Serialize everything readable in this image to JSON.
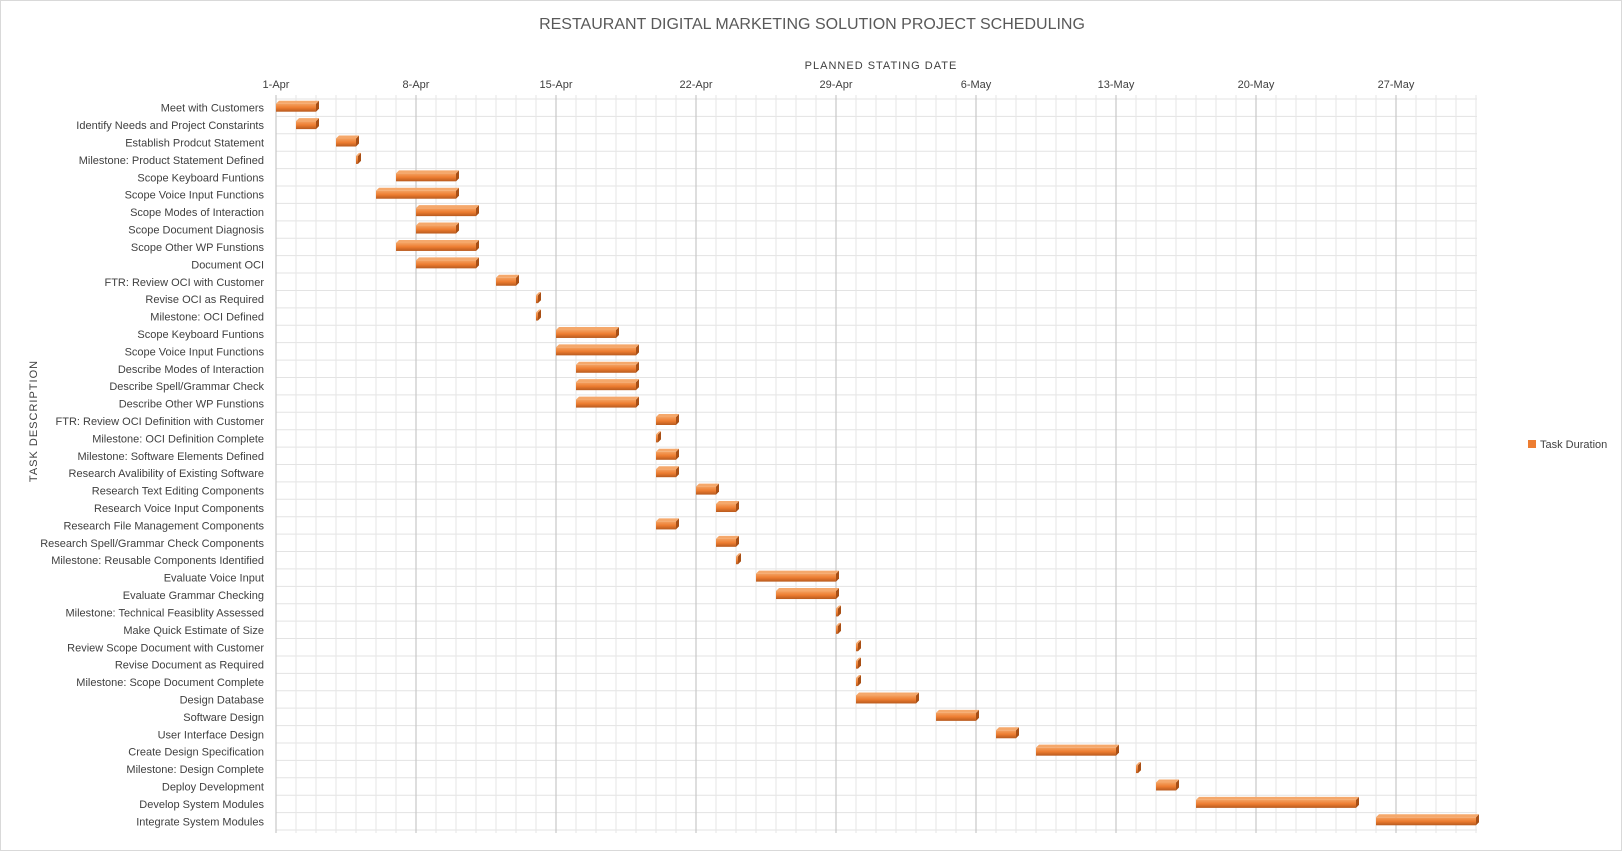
{
  "chart_data": {
    "type": "bar",
    "subtype": "gantt",
    "title": "RESTAURANT DIGITAL MARKETING SOLUTION PROJECT SCHEDULING",
    "xlabel": "PLANNED  STATING  DATE",
    "ylabel": "TASK DESCRIPTION",
    "x_axis_position": "top",
    "x_ticks": [
      "1-Apr",
      "8-Apr",
      "15-Apr",
      "22-Apr",
      "29-Apr",
      "6-May",
      "13-May",
      "20-May",
      "27-May"
    ],
    "x_range_days": [
      0,
      60
    ],
    "minor_grid_step_days": 1,
    "grid": true,
    "legend": {
      "position": "right",
      "entries": [
        "Task Duration"
      ]
    },
    "series": [
      {
        "name": "Task Duration",
        "color": "#ed7d31"
      }
    ],
    "tasks": [
      {
        "name": "Meet with Customers",
        "start": "1-Apr",
        "duration": 2
      },
      {
        "name": "Identify Needs and Project Constarints",
        "start": "2-Apr",
        "duration": 1
      },
      {
        "name": "Establish Prodcut Statement",
        "start": "4-Apr",
        "duration": 1
      },
      {
        "name": "Milestone: Product Statement Defined",
        "start": "5-Apr",
        "duration": 0
      },
      {
        "name": "Scope Keyboard Funtions",
        "start": "7-Apr",
        "duration": 3
      },
      {
        "name": "Scope Voice Input Functions",
        "start": "6-Apr",
        "duration": 4
      },
      {
        "name": "Scope Modes of Interaction",
        "start": "8-Apr",
        "duration": 3
      },
      {
        "name": "Scope Document Diagnosis",
        "start": "8-Apr",
        "duration": 2
      },
      {
        "name": "Scope Other WP Funstions",
        "start": "7-Apr",
        "duration": 4
      },
      {
        "name": "Document OCI",
        "start": "8-Apr",
        "duration": 3
      },
      {
        "name": "FTR: Review OCI with Customer",
        "start": "12-Apr",
        "duration": 1
      },
      {
        "name": "Revise OCI as Required",
        "start": "14-Apr",
        "duration": 0
      },
      {
        "name": "Milestone: OCI Defined",
        "start": "14-Apr",
        "duration": 0
      },
      {
        "name": "Scope Keyboard Funtions",
        "start": "15-Apr",
        "duration": 3
      },
      {
        "name": "Scope Voice Input Functions",
        "start": "15-Apr",
        "duration": 4
      },
      {
        "name": "Describe Modes of Interaction",
        "start": "16-Apr",
        "duration": 3
      },
      {
        "name": "Describe Spell/Grammar Check",
        "start": "16-Apr",
        "duration": 3
      },
      {
        "name": "Describe Other WP Funstions",
        "start": "16-Apr",
        "duration": 3
      },
      {
        "name": "FTR: Review OCI Definition with Customer",
        "start": "20-Apr",
        "duration": 1
      },
      {
        "name": "Milestone: OCI Definition Complete",
        "start": "20-Apr",
        "duration": 0
      },
      {
        "name": "Milestone: Software Elements Defined",
        "start": "20-Apr",
        "duration": 1
      },
      {
        "name": "Research Avalibility of Existing Software",
        "start": "20-Apr",
        "duration": 1
      },
      {
        "name": "Research Text Editing Components",
        "start": "22-Apr",
        "duration": 1
      },
      {
        "name": "Research Voice Input Components",
        "start": "23-Apr",
        "duration": 1
      },
      {
        "name": "Research File Management Components",
        "start": "20-Apr",
        "duration": 1
      },
      {
        "name": "Research Spell/Grammar Check Components",
        "start": "23-Apr",
        "duration": 1
      },
      {
        "name": "Milestone:  Reusable Components Identified",
        "start": "24-Apr",
        "duration": 0
      },
      {
        "name": "Evaluate Voice Input",
        "start": "25-Apr",
        "duration": 4
      },
      {
        "name": "Evaluate Grammar Checking",
        "start": "26-Apr",
        "duration": 3
      },
      {
        "name": "Milestone:  Technical Feasiblity Assessed",
        "start": "29-Apr",
        "duration": 0
      },
      {
        "name": "Make Quick Estimate of Size",
        "start": "29-Apr",
        "duration": 0
      },
      {
        "name": "Review Scope Document with Customer",
        "start": "30-Apr",
        "duration": 0
      },
      {
        "name": "Revise Document as Required",
        "start": "30-Apr",
        "duration": 0
      },
      {
        "name": "Milestone: Scope Document Complete",
        "start": "30-Apr",
        "duration": 0
      },
      {
        "name": "Design Database",
        "start": "30-Apr",
        "duration": 3
      },
      {
        "name": "Software Design",
        "start": "4-May",
        "duration": 2
      },
      {
        "name": "User Interface Design",
        "start": "7-May",
        "duration": 1
      },
      {
        "name": "Create Design Specification",
        "start": "9-May",
        "duration": 4
      },
      {
        "name": "Milestone: Design Complete",
        "start": "14-May",
        "duration": 0
      },
      {
        "name": "Deploy Development",
        "start": "15-May",
        "duration": 1
      },
      {
        "name": "Develop System Modules",
        "start": "17-May",
        "duration": 8
      },
      {
        "name": "Integrate System Modules",
        "start": "26-May",
        "duration": 5
      }
    ]
  }
}
